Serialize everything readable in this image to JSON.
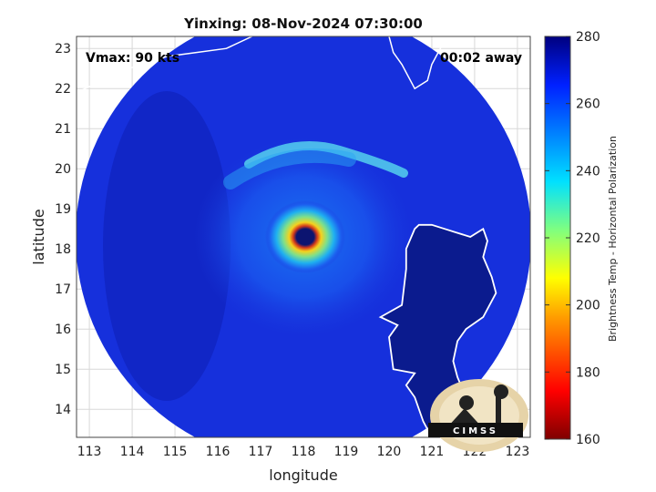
{
  "chart_data": {
    "type": "heatmap",
    "title": "Yinxing: 08-Nov-2024 07:30:00",
    "xlabel": "longitude",
    "ylabel": "latitude",
    "xlim": [
      112.7,
      123.3
    ],
    "ylim": [
      13.3,
      23.3
    ],
    "xticks": [
      "113",
      "114",
      "115",
      "116",
      "117",
      "118",
      "119",
      "120",
      "121",
      "122",
      "123"
    ],
    "yticks": [
      "14",
      "15",
      "16",
      "17",
      "18",
      "19",
      "20",
      "21",
      "22",
      "23"
    ],
    "grid": true,
    "storm_center": {
      "lon": 118.0,
      "lat": 18.3
    },
    "swath_center": {
      "lon": 118.0,
      "lat": 18.3
    },
    "annotations": {
      "vmax": "Vmax: 90 kts",
      "time_offset": "00:02 away"
    },
    "colorbar": {
      "label": "Brightness Temp - Horizontal Polarization",
      "range": [
        160,
        280
      ],
      "ticks": [
        "280",
        "260",
        "240",
        "220",
        "200",
        "180",
        "160"
      ],
      "colormap": "jet"
    },
    "logo_text": "CIMSS"
  },
  "colors": {
    "background": "#ffffff",
    "cold_ocean": "#1428d8",
    "land": "#0a1a8c",
    "coastline": "#ffffff"
  }
}
